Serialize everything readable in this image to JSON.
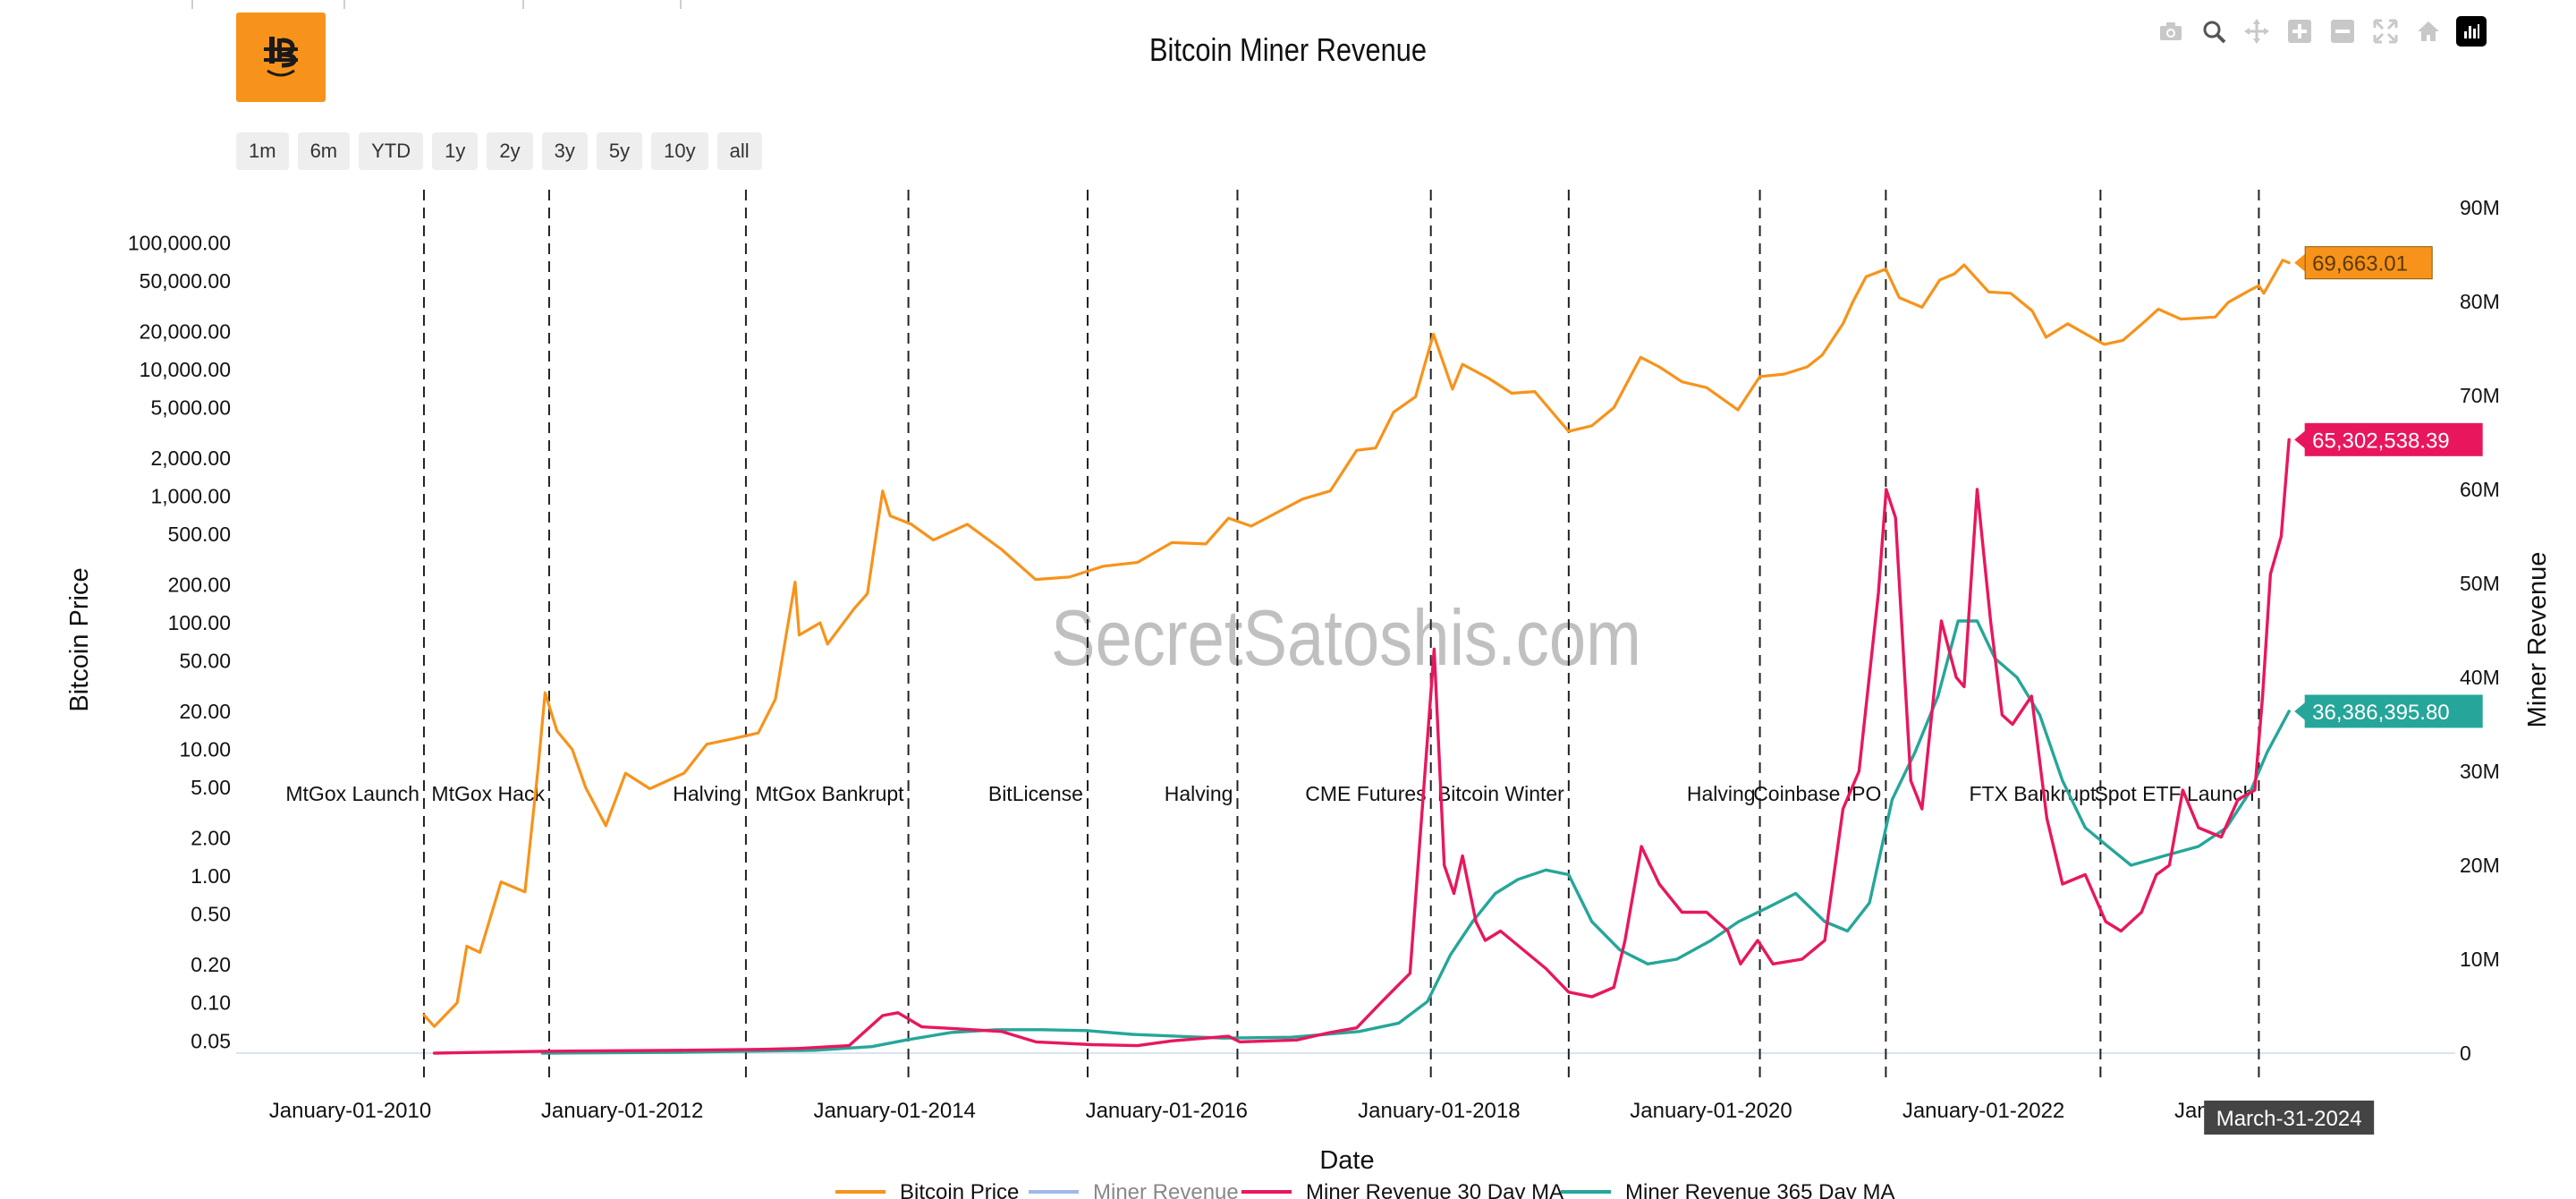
{
  "title": "Bitcoin Miner Revenue",
  "watermark": "SecretSatoshis.com",
  "range_buttons": [
    "1m",
    "6m",
    "YTD",
    "1y",
    "2y",
    "3y",
    "5y",
    "10y",
    "all"
  ],
  "modebar_icons": [
    "camera-icon",
    "zoom-icon",
    "pan-icon",
    "zoom-in-icon",
    "zoom-out-icon",
    "autoscale-icon",
    "reset-axes-icon",
    "logo-icon"
  ],
  "chart_data": {
    "type": "line",
    "title": "Bitcoin Miner Revenue",
    "xlabel": "Date",
    "ylabel_left": "Bitcoin Price",
    "ylabel_right": "Miner Revenue",
    "y_left_scale": "log",
    "y_left_range": [
      0.04,
      190000
    ],
    "y_right_range": [
      0,
      90000000
    ],
    "x_range": [
      "2009-03-01",
      "2025-06-20"
    ],
    "grid": false,
    "legend_position": "bottom",
    "x_ticks": [
      "January-01-2010",
      "January-01-2012",
      "January-01-2014",
      "January-01-2016",
      "January-01-2018",
      "January-01-2020",
      "January-01-2022",
      "January-01-2024"
    ],
    "y_left_ticks": [
      {
        "value": 0.05,
        "label": "0.05"
      },
      {
        "value": 0.1,
        "label": "0.10"
      },
      {
        "value": 0.2,
        "label": "0.20"
      },
      {
        "value": 0.5,
        "label": "0.50"
      },
      {
        "value": 1,
        "label": "1.00"
      },
      {
        "value": 2,
        "label": "2.00"
      },
      {
        "value": 5,
        "label": "5.00"
      },
      {
        "value": 10,
        "label": "10.00"
      },
      {
        "value": 20,
        "label": "20.00"
      },
      {
        "value": 50,
        "label": "50.00"
      },
      {
        "value": 100,
        "label": "100.00"
      },
      {
        "value": 200,
        "label": "200.00"
      },
      {
        "value": 500,
        "label": "500.00"
      },
      {
        "value": 1000,
        "label": "1,000.00"
      },
      {
        "value": 2000,
        "label": "2,000.00"
      },
      {
        "value": 5000,
        "label": "5,000.00"
      },
      {
        "value": 10000,
        "label": "10,000.00"
      },
      {
        "value": 20000,
        "label": "20,000.00"
      },
      {
        "value": 50000,
        "label": "50,000.00"
      },
      {
        "value": 100000,
        "label": "100,000.00"
      }
    ],
    "y_right_ticks": [
      {
        "value": 0,
        "label": "0"
      },
      {
        "value": 10000000,
        "label": "10M"
      },
      {
        "value": 20000000,
        "label": "20M"
      },
      {
        "value": 30000000,
        "label": "30M"
      },
      {
        "value": 40000000,
        "label": "40M"
      },
      {
        "value": 50000000,
        "label": "50M"
      },
      {
        "value": 60000000,
        "label": "60M"
      },
      {
        "value": 70000000,
        "label": "70M"
      },
      {
        "value": 80000000,
        "label": "80M"
      },
      {
        "value": 90000000,
        "label": "90M"
      }
    ],
    "events": [
      {
        "date": "2010-07-18",
        "label": "MtGox Launch"
      },
      {
        "date": "2011-06-19",
        "label": "MtGox Hack"
      },
      {
        "date": "2012-11-28",
        "label": "Halving"
      },
      {
        "date": "2014-02-07",
        "label": "MtGox Bankrupt"
      },
      {
        "date": "2015-06-03",
        "label": "BitLicense"
      },
      {
        "date": "2016-07-09",
        "label": "Halving"
      },
      {
        "date": "2017-12-10",
        "label": "CME Futures"
      },
      {
        "date": "2018-12-15",
        "label": "Bitcoin Winter"
      },
      {
        "date": "2020-05-11",
        "label": "Halving"
      },
      {
        "date": "2021-04-14",
        "label": "Coinbase IPO"
      },
      {
        "date": "2022-11-11",
        "label": "FTX Bankrupt"
      },
      {
        "date": "2024-01-10",
        "label": "Spot ETF Launch"
      }
    ],
    "series": [
      {
        "name": "Bitcoin Price",
        "color": "#f7931a",
        "axis": "left",
        "last_value_label": "69,663.01",
        "x": [
          "2010-07-18",
          "2010-08-15",
          "2010-10-15",
          "2010-11-10",
          "2010-12-15",
          "2011-02-10",
          "2011-04-15",
          "2011-05-20",
          "2011-06-08",
          "2011-07-10",
          "2011-08-20",
          "2011-09-25",
          "2011-11-18",
          "2012-01-10",
          "2012-03-15",
          "2012-06-15",
          "2012-08-15",
          "2012-10-15",
          "2012-12-31",
          "2013-02-15",
          "2013-04-09",
          "2013-04-20",
          "2013-06-15",
          "2013-07-05",
          "2013-09-15",
          "2013-10-20",
          "2013-11-30",
          "2013-12-20",
          "2014-02-15",
          "2014-04-15",
          "2014-07-15",
          "2014-10-15",
          "2015-01-14",
          "2015-04-15",
          "2015-07-15",
          "2015-10-15",
          "2016-01-15",
          "2016-04-15",
          "2016-06-15",
          "2016-08-15",
          "2016-12-31",
          "2017-03-15",
          "2017-05-25",
          "2017-07-15",
          "2017-09-01",
          "2017-10-30",
          "2017-12-17",
          "2018-02-06",
          "2018-03-05",
          "2018-05-15",
          "2018-07-15",
          "2018-09-15",
          "2018-11-25",
          "2018-12-15",
          "2019-02-15",
          "2019-04-15",
          "2019-06-26",
          "2019-08-15",
          "2019-10-15",
          "2019-12-20",
          "2020-03-13",
          "2020-05-11",
          "2020-07-15",
          "2020-09-15",
          "2020-10-25",
          "2020-12-20",
          "2021-01-15",
          "2021-02-20",
          "2021-04-14",
          "2021-05-20",
          "2021-07-20",
          "2021-09-06",
          "2021-10-15",
          "2021-11-10",
          "2022-01-15",
          "2022-03-15",
          "2022-05-12",
          "2022-06-18",
          "2022-08-15",
          "2022-11-21",
          "2023-01-10",
          "2023-03-10",
          "2023-04-15",
          "2023-06-15",
          "2023-09-15",
          "2023-10-20",
          "2023-12-15",
          "2024-01-10",
          "2024-01-23",
          "2024-03-14",
          "2024-03-31"
        ],
        "y": [
          0.08,
          0.065,
          0.1,
          0.28,
          0.25,
          0.9,
          0.75,
          7,
          28,
          14,
          10,
          5,
          2.5,
          6.5,
          4.9,
          6.5,
          11,
          12,
          13.5,
          25,
          210,
          80,
          100,
          68,
          130,
          170,
          1100,
          700,
          600,
          450,
          600,
          380,
          220,
          230,
          280,
          300,
          430,
          420,
          670,
          580,
          950,
          1100,
          2300,
          2400,
          4600,
          6100,
          19000,
          7000,
          11000,
          8500,
          6500,
          6700,
          3800,
          3250,
          3600,
          5000,
          12500,
          10500,
          8000,
          7200,
          4800,
          8800,
          9200,
          10500,
          13000,
          23000,
          34000,
          54000,
          62000,
          37000,
          31000,
          51000,
          57000,
          67000,
          41000,
          40000,
          29000,
          18000,
          23000,
          15800,
          17000,
          24000,
          30000,
          25000,
          26000,
          34000,
          42000,
          46000,
          40000,
          73000,
          69663
        ]
      },
      {
        "name": "Miner Revenue",
        "color": "#9fb9ea",
        "axis": "right",
        "legend_faded": true,
        "x": [],
        "y": []
      },
      {
        "name": "Miner Revenue 30 Day MA",
        "color": "#e8175d",
        "axis": "right",
        "last_value_label": "65,302,538.39",
        "x": [
          "2010-08-15",
          "2011-06-01",
          "2012-06-01",
          "2013-01-01",
          "2013-04-15",
          "2013-09-01",
          "2013-11-30",
          "2014-01-10",
          "2014-03-15",
          "2014-06-15",
          "2014-10-15",
          "2015-01-15",
          "2015-06-15",
          "2015-10-15",
          "2016-01-15",
          "2016-06-15",
          "2016-07-15",
          "2016-12-15",
          "2017-03-15",
          "2017-05-25",
          "2017-08-01",
          "2017-10-15",
          "2017-12-19",
          "2018-01-15",
          "2018-02-10",
          "2018-03-05",
          "2018-04-10",
          "2018-05-05",
          "2018-06-15",
          "2018-08-15",
          "2018-10-15",
          "2018-12-15",
          "2019-02-15",
          "2019-04-15",
          "2019-05-15",
          "2019-06-28",
          "2019-08-15",
          "2019-10-15",
          "2019-12-20",
          "2020-02-15",
          "2020-03-20",
          "2020-05-05",
          "2020-06-15",
          "2020-09-01",
          "2020-11-01",
          "2020-12-20",
          "2021-02-01",
          "2021-03-25",
          "2021-04-15",
          "2021-05-10",
          "2021-06-20",
          "2021-07-20",
          "2021-09-10",
          "2021-10-20",
          "2021-11-10",
          "2021-12-15",
          "2022-01-20",
          "2022-02-20",
          "2022-03-20",
          "2022-05-10",
          "2022-06-20",
          "2022-08-01",
          "2022-10-01",
          "2022-11-25",
          "2023-01-05",
          "2023-03-01",
          "2023-04-10",
          "2023-05-15",
          "2023-06-20",
          "2023-08-01",
          "2023-10-01",
          "2023-11-15",
          "2023-12-30",
          "2024-01-20",
          "2024-02-10",
          "2024-03-10",
          "2024-03-31"
        ],
        "y": [
          0,
          200000,
          300000,
          400000,
          500000,
          800000,
          4000000,
          4300000,
          2800000,
          2600000,
          2300000,
          1200000,
          900000,
          800000,
          1300000,
          1800000,
          1200000,
          1400000,
          2200000,
          2700000,
          5500000,
          8500000,
          43000000,
          20000000,
          17000000,
          21000000,
          14000000,
          12000000,
          13000000,
          11000000,
          9000000,
          6500000,
          6000000,
          7000000,
          12000000,
          22000000,
          18000000,
          15000000,
          15000000,
          13000000,
          9500000,
          12000000,
          9500000,
          10000000,
          12000000,
          26000000,
          30000000,
          49000000,
          60000000,
          57000000,
          29000000,
          26000000,
          46000000,
          40000000,
          39000000,
          60000000,
          46000000,
          36000000,
          35000000,
          38000000,
          25000000,
          18000000,
          19000000,
          14000000,
          13000000,
          15000000,
          19000000,
          20000000,
          28000000,
          24000000,
          23000000,
          27000000,
          28000000,
          38000000,
          51000000,
          55000000,
          65302538
        ]
      },
      {
        "name": "Miner Revenue 365 Day MA",
        "color": "#26a69a",
        "axis": "right",
        "last_value_label": "36,386,395.80",
        "x": [
          "2011-06-01",
          "2012-06-01",
          "2013-06-01",
          "2013-11-01",
          "2014-02-01",
          "2014-06-01",
          "2014-10-01",
          "2015-02-01",
          "2015-06-01",
          "2015-10-01",
          "2016-06-01",
          "2016-12-01",
          "2017-06-01",
          "2017-09-15",
          "2017-12-01",
          "2018-02-01",
          "2018-04-01",
          "2018-06-01",
          "2018-08-01",
          "2018-10-15",
          "2018-12-15",
          "2019-02-15",
          "2019-05-01",
          "2019-07-15",
          "2019-10-01",
          "2020-01-01",
          "2020-03-15",
          "2020-06-01",
          "2020-08-15",
          "2020-11-01",
          "2021-01-01",
          "2021-03-01",
          "2021-05-01",
          "2021-07-01",
          "2021-09-01",
          "2021-10-25",
          "2021-12-15",
          "2022-02-01",
          "2022-04-01",
          "2022-06-01",
          "2022-08-01",
          "2022-10-01",
          "2022-12-01",
          "2023-02-01",
          "2023-05-01",
          "2023-08-01",
          "2023-10-15",
          "2023-12-20",
          "2024-02-01",
          "2024-03-31"
        ],
        "y": [
          0,
          100000,
          300000,
          700000,
          1400000,
          2200000,
          2500000,
          2500000,
          2400000,
          2000000,
          1600000,
          1700000,
          2300000,
          3200000,
          5500000,
          10500000,
          14000000,
          17000000,
          18500000,
          19500000,
          19000000,
          14000000,
          11000000,
          9500000,
          10000000,
          12000000,
          14000000,
          15500000,
          17000000,
          14000000,
          13000000,
          16000000,
          27000000,
          32000000,
          38000000,
          46000000,
          46000000,
          42000000,
          40000000,
          36000000,
          29000000,
          24000000,
          22000000,
          20000000,
          21000000,
          22000000,
          24000000,
          28000000,
          32000000,
          36386396
        ]
      }
    ],
    "hover_date_label": "March-31-2024"
  }
}
